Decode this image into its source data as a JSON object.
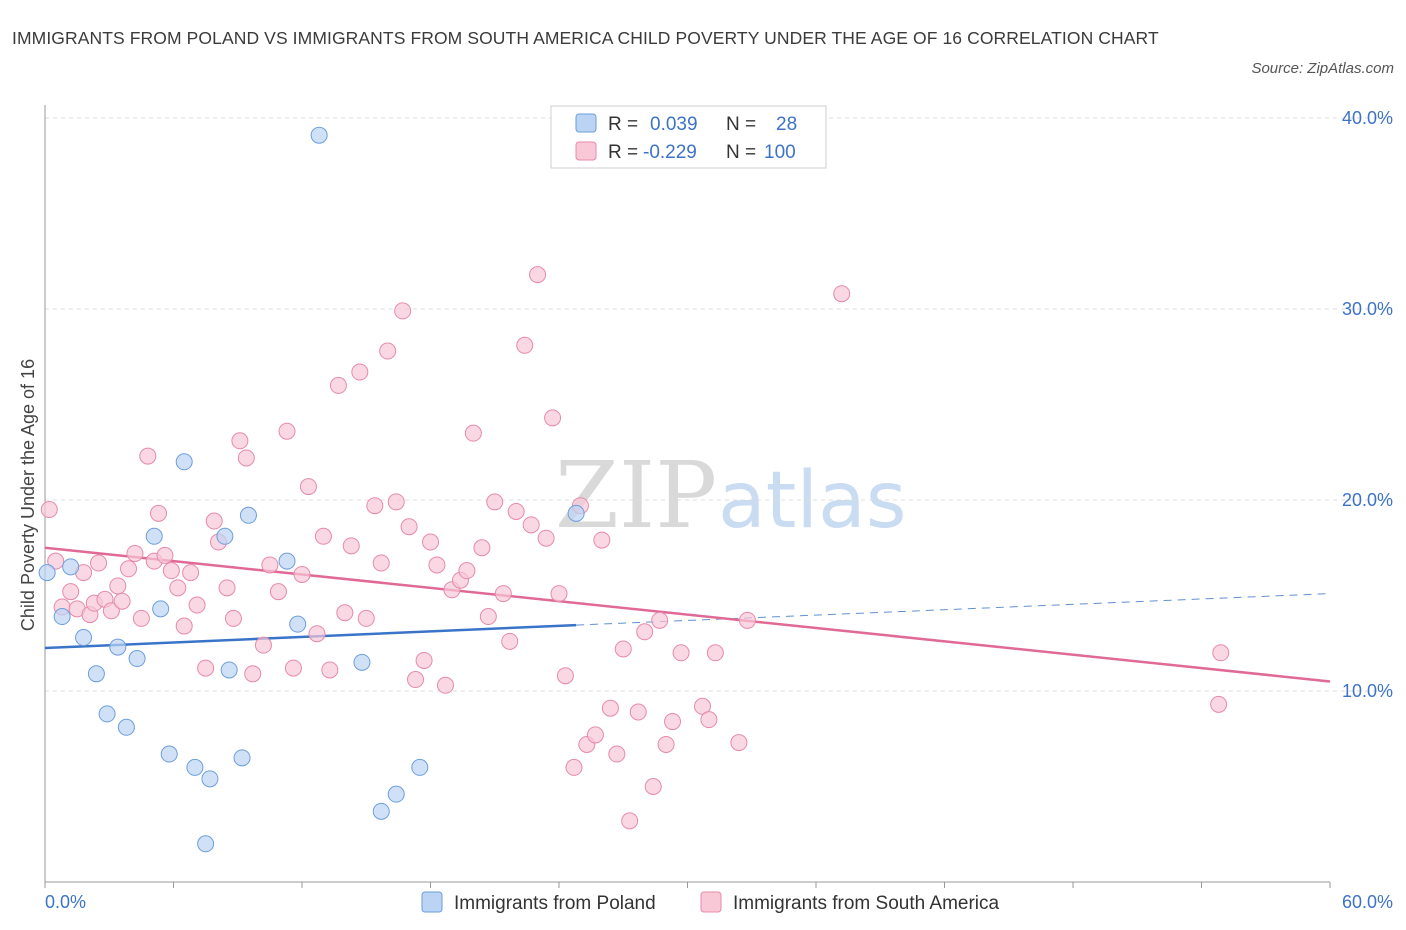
{
  "title": "IMMIGRANTS FROM POLAND VS IMMIGRANTS FROM SOUTH AMERICA CHILD POVERTY UNDER THE AGE OF 16 CORRELATION CHART",
  "source": "Source: ZipAtlas.com",
  "watermark": {
    "zip": "ZIP",
    "atlas": "atlas"
  },
  "stats": [
    {
      "r_label": "R =",
      "r_value": "0.039",
      "n_label": "N =",
      "n_value": "28"
    },
    {
      "r_label": "R =",
      "r_value": "-0.229",
      "n_label": "N =",
      "n_value": "100"
    }
  ],
  "colors": {
    "poland_fill": "#bcd4f4",
    "poland_stroke": "#6d9edc",
    "poland_line": "#3a74c8",
    "sa_fill": "#f8c8d7",
    "sa_stroke": "#e68aaa",
    "sa_line": "#e06a95",
    "grid": "#dcdcdc",
    "axis": "#999999",
    "tick_text": "#3c73c9"
  },
  "chart_data": {
    "type": "scatter",
    "title": "IMMIGRANTS FROM POLAND VS IMMIGRANTS FROM SOUTH AMERICA CHILD POVERTY UNDER THE AGE OF 16 CORRELATION CHART",
    "xlabel": "",
    "ylabel": "Child Poverty Under the Age of 16",
    "xlim": [
      0,
      60
    ],
    "ylim": [
      0,
      40
    ],
    "x_tick_labels": [
      "0.0%",
      "60.0%"
    ],
    "y_ticks": [
      10,
      20,
      30,
      40
    ],
    "y_tick_labels": [
      "10.0%",
      "20.0%",
      "30.0%",
      "40.0%"
    ],
    "grid": true,
    "legend_position": "bottom",
    "series": [
      {
        "name": "Immigrants from Poland",
        "points": [
          [
            12.8,
            39.1
          ],
          [
            0.1,
            16.2
          ],
          [
            1.2,
            16.5
          ],
          [
            0.8,
            13.9
          ],
          [
            1.8,
            12.8
          ],
          [
            3.4,
            12.3
          ],
          [
            4.3,
            11.7
          ],
          [
            2.4,
            10.9
          ],
          [
            2.9,
            8.8
          ],
          [
            3.8,
            8.1
          ],
          [
            5.1,
            18.1
          ],
          [
            5.4,
            14.3
          ],
          [
            6.5,
            22.0
          ],
          [
            5.8,
            6.7
          ],
          [
            7.0,
            6.0
          ],
          [
            7.7,
            5.4
          ],
          [
            7.5,
            2.0
          ],
          [
            8.4,
            18.1
          ],
          [
            8.6,
            11.1
          ],
          [
            9.2,
            6.5
          ],
          [
            9.5,
            19.2
          ],
          [
            11.3,
            16.8
          ],
          [
            11.8,
            13.5
          ],
          [
            14.8,
            11.5
          ],
          [
            15.7,
            3.7
          ],
          [
            16.4,
            4.6
          ],
          [
            17.5,
            6.0
          ],
          [
            24.8,
            19.3
          ]
        ],
        "trend": {
          "x": [
            0,
            24.8
          ],
          "y": [
            12.25,
            13.45
          ],
          "dashed_to": [
            60,
            15.1
          ]
        }
      },
      {
        "name": "Immigrants from South America",
        "points": [
          [
            0.2,
            19.5
          ],
          [
            0.5,
            16.8
          ],
          [
            0.8,
            14.4
          ],
          [
            1.2,
            15.2
          ],
          [
            1.5,
            14.3
          ],
          [
            1.8,
            16.2
          ],
          [
            2.1,
            14.0
          ],
          [
            2.3,
            14.6
          ],
          [
            2.5,
            16.7
          ],
          [
            2.8,
            14.8
          ],
          [
            3.1,
            14.2
          ],
          [
            3.4,
            15.5
          ],
          [
            3.6,
            14.7
          ],
          [
            3.9,
            16.4
          ],
          [
            4.2,
            17.2
          ],
          [
            4.5,
            13.8
          ],
          [
            4.8,
            22.3
          ],
          [
            5.1,
            16.8
          ],
          [
            5.3,
            19.3
          ],
          [
            5.6,
            17.1
          ],
          [
            5.9,
            16.3
          ],
          [
            6.2,
            15.4
          ],
          [
            6.5,
            13.4
          ],
          [
            6.8,
            16.2
          ],
          [
            7.1,
            14.5
          ],
          [
            7.5,
            11.2
          ],
          [
            7.9,
            18.9
          ],
          [
            8.1,
            17.8
          ],
          [
            8.5,
            15.4
          ],
          [
            8.8,
            13.8
          ],
          [
            9.1,
            23.1
          ],
          [
            9.4,
            22.2
          ],
          [
            9.7,
            10.9
          ],
          [
            10.2,
            12.4
          ],
          [
            10.5,
            16.6
          ],
          [
            10.9,
            15.2
          ],
          [
            11.3,
            23.6
          ],
          [
            11.6,
            11.2
          ],
          [
            12.0,
            16.1
          ],
          [
            12.3,
            20.7
          ],
          [
            12.7,
            13.0
          ],
          [
            13.0,
            18.1
          ],
          [
            13.3,
            11.1
          ],
          [
            13.7,
            26.0
          ],
          [
            14.0,
            14.1
          ],
          [
            14.3,
            17.6
          ],
          [
            14.7,
            26.7
          ],
          [
            15.0,
            13.8
          ],
          [
            15.4,
            19.7
          ],
          [
            15.7,
            16.7
          ],
          [
            16.0,
            27.8
          ],
          [
            16.4,
            19.9
          ],
          [
            16.7,
            29.9
          ],
          [
            17.0,
            18.6
          ],
          [
            17.3,
            10.6
          ],
          [
            17.7,
            11.6
          ],
          [
            18.0,
            17.8
          ],
          [
            18.3,
            16.6
          ],
          [
            18.7,
            10.3
          ],
          [
            19.0,
            15.3
          ],
          [
            19.4,
            15.8
          ],
          [
            19.7,
            16.3
          ],
          [
            20.0,
            23.5
          ],
          [
            20.4,
            17.5
          ],
          [
            20.7,
            13.9
          ],
          [
            21.0,
            19.9
          ],
          [
            21.4,
            15.1
          ],
          [
            21.7,
            12.6
          ],
          [
            22.0,
            19.4
          ],
          [
            22.4,
            28.1
          ],
          [
            22.7,
            18.7
          ],
          [
            23.0,
            31.8
          ],
          [
            23.4,
            18.0
          ],
          [
            23.7,
            24.3
          ],
          [
            24.0,
            15.1
          ],
          [
            24.3,
            10.8
          ],
          [
            24.7,
            6.0
          ],
          [
            25.0,
            19.7
          ],
          [
            25.3,
            7.2
          ],
          [
            25.7,
            7.7
          ],
          [
            26.0,
            17.9
          ],
          [
            26.4,
            9.1
          ],
          [
            26.7,
            6.7
          ],
          [
            27.0,
            12.2
          ],
          [
            27.3,
            3.2
          ],
          [
            27.7,
            8.9
          ],
          [
            28.0,
            13.1
          ],
          [
            28.4,
            5.0
          ],
          [
            28.7,
            13.7
          ],
          [
            29.0,
            7.2
          ],
          [
            29.3,
            8.4
          ],
          [
            29.7,
            12.0
          ],
          [
            30.7,
            9.2
          ],
          [
            31.0,
            8.5
          ],
          [
            31.3,
            12.0
          ],
          [
            32.4,
            7.3
          ],
          [
            32.8,
            13.7
          ],
          [
            37.2,
            30.8
          ],
          [
            54.8,
            9.3
          ],
          [
            54.9,
            12.0
          ]
        ],
        "trend": {
          "x": [
            0,
            60
          ],
          "y": [
            17.5,
            10.5
          ]
        }
      }
    ]
  },
  "legend": [
    {
      "label": "Immigrants from Poland"
    },
    {
      "label": "Immigrants from South America"
    }
  ]
}
